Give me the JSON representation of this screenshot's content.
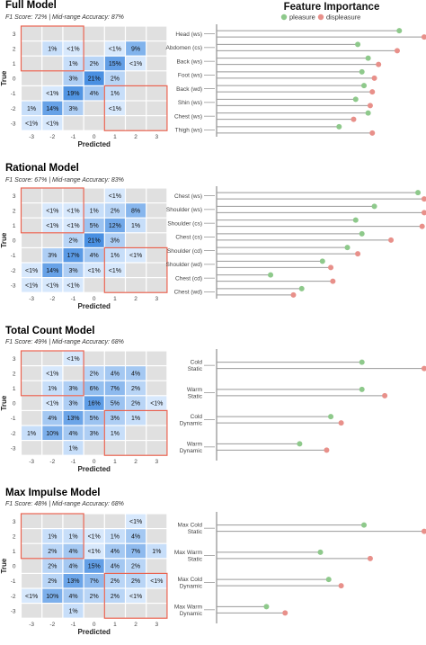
{
  "figure": {
    "fi_title": "Feature Importance",
    "legend": [
      {
        "label": "pleasure",
        "color": "#8ec98b"
      },
      {
        "label": "displeasure",
        "color": "#e8908a"
      }
    ],
    "axis": {
      "xlabel": "Predicted",
      "ylabel": "True"
    },
    "colors": {
      "empty": "#e0e0e0",
      "cell_low": "#eaf4ff",
      "cell_high": "#4a90e2",
      "band": "#e8624f",
      "stem": "#999999"
    }
  },
  "chart_data": [
    {
      "type": "heatmap",
      "title": "Full Model",
      "subtitle": "F1 Score: 72%  |  Mid-range Accuracy: 87%",
      "x_ticks": [
        "-3",
        "-2",
        "-1",
        "0",
        "1",
        "2",
        "3"
      ],
      "y_ticks": [
        "3",
        "2",
        "1",
        "0",
        "-1",
        "-2",
        "-3"
      ],
      "cells": [
        [
          "",
          "",
          "",
          "",
          "",
          "",
          ""
        ],
        [
          "",
          "1%",
          "<1%",
          "",
          "<1%",
          "9%",
          ""
        ],
        [
          "",
          "",
          "1%",
          "2%",
          "15%",
          "<1%",
          ""
        ],
        [
          "",
          "",
          "3%",
          "21%",
          "2%",
          "",
          ""
        ],
        [
          "",
          "<1%",
          "19%",
          "4%",
          "1%",
          "",
          ""
        ],
        [
          "1%",
          "14%",
          "3%",
          "",
          "<1%",
          "",
          ""
        ],
        [
          "<1%",
          "<1%",
          "",
          "",
          "",
          "",
          ""
        ]
      ],
      "values": [
        [
          0,
          0,
          0,
          0,
          0,
          0,
          0
        ],
        [
          0,
          1,
          0.3,
          0,
          0.3,
          9,
          0
        ],
        [
          0,
          0,
          1,
          2,
          15,
          0.3,
          0
        ],
        [
          0,
          0,
          3,
          21,
          2,
          0,
          0
        ],
        [
          0,
          0.3,
          19,
          4,
          1,
          0,
          0
        ],
        [
          1,
          14,
          3,
          0,
          0.3,
          0,
          0
        ],
        [
          0.3,
          0.3,
          0,
          0,
          0,
          0,
          0
        ]
      ],
      "features": {
        "names": [
          "Head (ws)",
          "Abdomen (cs)",
          "Back (ws)",
          "Foot (ws)",
          "Back (wd)",
          "Shin (ws)",
          "Chest (ws)",
          "Thigh (ws)"
        ],
        "pleasure": [
          0.88,
          0.68,
          0.73,
          0.7,
          0.71,
          0.67,
          0.73,
          0.59
        ],
        "displeasure": [
          1.0,
          0.87,
          0.78,
          0.76,
          0.75,
          0.74,
          0.66,
          0.75
        ]
      }
    },
    {
      "type": "heatmap",
      "title": "Rational Model",
      "subtitle": "F1 Score: 67%  |  Mid-range Accuracy: 83%",
      "x_ticks": [
        "-3",
        "-2",
        "-1",
        "0",
        "1",
        "2",
        "3"
      ],
      "y_ticks": [
        "3",
        "2",
        "1",
        "0",
        "-1",
        "-2",
        "-3"
      ],
      "cells": [
        [
          "",
          "",
          "",
          "",
          "<1%",
          "",
          ""
        ],
        [
          "",
          "<1%",
          "<1%",
          "1%",
          "2%",
          "8%",
          ""
        ],
        [
          "",
          "<1%",
          "<1%",
          "5%",
          "12%",
          "1%",
          ""
        ],
        [
          "",
          "",
          "2%",
          "21%",
          "3%",
          "",
          ""
        ],
        [
          "",
          "3%",
          "17%",
          "4%",
          "1%",
          "<1%",
          ""
        ],
        [
          "<1%",
          "14%",
          "3%",
          "<1%",
          "<1%",
          "",
          ""
        ],
        [
          "<1%",
          "<1%",
          "<1%",
          "",
          "",
          "",
          ""
        ]
      ],
      "values": [
        [
          0,
          0,
          0,
          0,
          0.3,
          0,
          0
        ],
        [
          0,
          0.3,
          0.3,
          1,
          2,
          8,
          0
        ],
        [
          0,
          0.3,
          0.3,
          5,
          12,
          1,
          0
        ],
        [
          0,
          0,
          2,
          21,
          3,
          0,
          0
        ],
        [
          0,
          3,
          17,
          4,
          1,
          0.3,
          0
        ],
        [
          0.3,
          14,
          3,
          0.3,
          0.3,
          0,
          0
        ],
        [
          0.3,
          0.3,
          0.3,
          0,
          0,
          0,
          0
        ]
      ],
      "features": {
        "names": [
          "Chest (ws)",
          "Shoulder (ws)",
          "Shoulder (cs)",
          "Chest (cs)",
          "Shoulder (cd)",
          "Shoulder (wd)",
          "Chest (cd)",
          "Chest (wd)"
        ],
        "pleasure": [
          0.97,
          0.76,
          0.67,
          0.7,
          0.63,
          0.51,
          0.26,
          0.41
        ],
        "displeasure": [
          1.0,
          1.0,
          0.99,
          0.84,
          0.68,
          0.55,
          0.56,
          0.37
        ]
      }
    },
    {
      "type": "heatmap",
      "title": "Total Count Model",
      "subtitle": "F1 Score: 49%  |  Mid-range Accuracy: 68%",
      "x_ticks": [
        "-3",
        "-2",
        "-1",
        "0",
        "1",
        "2",
        "3"
      ],
      "y_ticks": [
        "3",
        "2",
        "1",
        "0",
        "-1",
        "-2",
        "-3"
      ],
      "cells": [
        [
          "",
          "",
          "<1%",
          "",
          "",
          "",
          ""
        ],
        [
          "",
          "<1%",
          "",
          "2%",
          "4%",
          "4%",
          ""
        ],
        [
          "",
          "1%",
          "3%",
          "6%",
          "7%",
          "2%",
          ""
        ],
        [
          "",
          "<1%",
          "3%",
          "16%",
          "5%",
          "2%",
          "<1%"
        ],
        [
          "",
          "4%",
          "13%",
          "5%",
          "3%",
          "1%",
          ""
        ],
        [
          "1%",
          "10%",
          "4%",
          "3%",
          "1%",
          "",
          ""
        ],
        [
          "",
          "",
          "1%",
          "",
          "",
          "",
          ""
        ]
      ],
      "values": [
        [
          0,
          0,
          0.3,
          0,
          0,
          0,
          0
        ],
        [
          0,
          0.3,
          0,
          2,
          4,
          4,
          0
        ],
        [
          0,
          1,
          3,
          6,
          7,
          2,
          0
        ],
        [
          0,
          0.3,
          3,
          16,
          5,
          2,
          0.3
        ],
        [
          0,
          4,
          13,
          5,
          3,
          1,
          0
        ],
        [
          1,
          10,
          4,
          3,
          1,
          0,
          0
        ],
        [
          0,
          0,
          1,
          0,
          0,
          0,
          0
        ]
      ],
      "features": {
        "names": [
          "Cold\nStatic",
          "Warm\nStatic",
          "Cold\nDynamic",
          "Warm\nDynamic"
        ],
        "pleasure": [
          0.7,
          0.7,
          0.55,
          0.4
        ],
        "displeasure": [
          1.0,
          0.81,
          0.6,
          0.53
        ]
      }
    },
    {
      "type": "heatmap",
      "title": "Max Impulse Model",
      "subtitle": "F1 Score: 48%  |  Mid-range Accuracy: 68%",
      "x_ticks": [
        "-3",
        "-2",
        "-1",
        "0",
        "1",
        "2",
        "3"
      ],
      "y_ticks": [
        "3",
        "2",
        "1",
        "0",
        "-1",
        "-2",
        "-3"
      ],
      "cells": [
        [
          "",
          "",
          "",
          "",
          "",
          "<1%",
          ""
        ],
        [
          "",
          "1%",
          "1%",
          "<1%",
          "1%",
          "4%",
          ""
        ],
        [
          "",
          "2%",
          "4%",
          "<1%",
          "4%",
          "7%",
          "1%"
        ],
        [
          "",
          "2%",
          "4%",
          "15%",
          "4%",
          "2%",
          ""
        ],
        [
          "",
          "2%",
          "13%",
          "7%",
          "2%",
          "2%",
          "<1%"
        ],
        [
          "<1%",
          "10%",
          "4%",
          "2%",
          "2%",
          "<1%",
          ""
        ],
        [
          "",
          "",
          "1%",
          "",
          "",
          "",
          ""
        ]
      ],
      "values": [
        [
          0,
          0,
          0,
          0,
          0,
          0.3,
          0
        ],
        [
          0,
          1,
          1,
          0.3,
          1,
          4,
          0
        ],
        [
          0,
          2,
          4,
          0.3,
          4,
          7,
          1
        ],
        [
          0,
          2,
          4,
          15,
          4,
          2,
          0
        ],
        [
          0,
          2,
          13,
          7,
          2,
          2,
          0.3
        ],
        [
          0.3,
          10,
          4,
          2,
          2,
          0.3,
          0
        ],
        [
          0,
          0,
          1,
          0,
          0,
          0,
          0
        ]
      ],
      "features": {
        "names": [
          "Max Cold\nStatic",
          "Max Warm\nStatic",
          "Max Cold\nDynamic",
          "Max Warm\nDynamic"
        ],
        "pleasure": [
          0.71,
          0.5,
          0.54,
          0.24
        ],
        "displeasure": [
          1.0,
          0.74,
          0.6,
          0.33
        ]
      }
    }
  ]
}
